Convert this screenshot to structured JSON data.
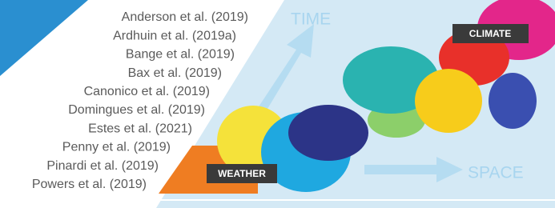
{
  "references": [
    "Anderson et al. (2019)",
    "Ardhuin et al. (2019a)",
    "Bange et al. (2019)",
    "Bax et al. (2019)",
    "Canonico et al. (2019)",
    "Domingues et al. (2019)",
    "Estes et al. (2021)",
    "Penny et al. (2019)",
    "Pinardi et al. (2019)",
    "Powers et al. (2019)"
  ],
  "axes": {
    "time": "TIME",
    "space": "SPACE"
  },
  "labels": {
    "weather": "WEATHER",
    "climate": "CLIMATE"
  }
}
